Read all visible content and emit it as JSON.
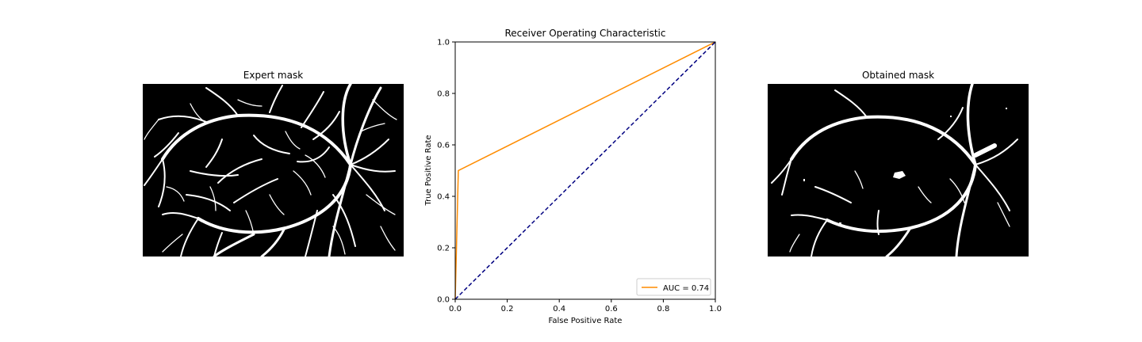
{
  "panels": {
    "left": {
      "title": "Expert mask"
    },
    "right": {
      "title": "Obtained mask"
    }
  },
  "chart_data": {
    "type": "line",
    "title": "Receiver Operating Characteristic",
    "xlabel": "False Positive Rate",
    "ylabel": "True Positive Rate",
    "xlim": [
      0,
      1
    ],
    "ylim": [
      0,
      1
    ],
    "xticks": [
      "0.0",
      "0.2",
      "0.4",
      "0.6",
      "0.8",
      "1.0"
    ],
    "yticks": [
      "0.0",
      "0.2",
      "0.4",
      "0.6",
      "0.8",
      "1.0"
    ],
    "grid": false,
    "legend": {
      "placement": "lower-right",
      "entries": [
        "AUC = 0.74"
      ]
    },
    "series": [
      {
        "name": "AUC = 0.74",
        "color": "#ff8c00",
        "style": "solid",
        "x": [
          0.0,
          0.012,
          1.0
        ],
        "y": [
          0.0,
          0.5,
          1.0
        ]
      },
      {
        "color": "#000080",
        "style": "dashed",
        "x": [
          0.0,
          1.0
        ],
        "y": [
          0.0,
          1.0
        ]
      }
    ]
  }
}
